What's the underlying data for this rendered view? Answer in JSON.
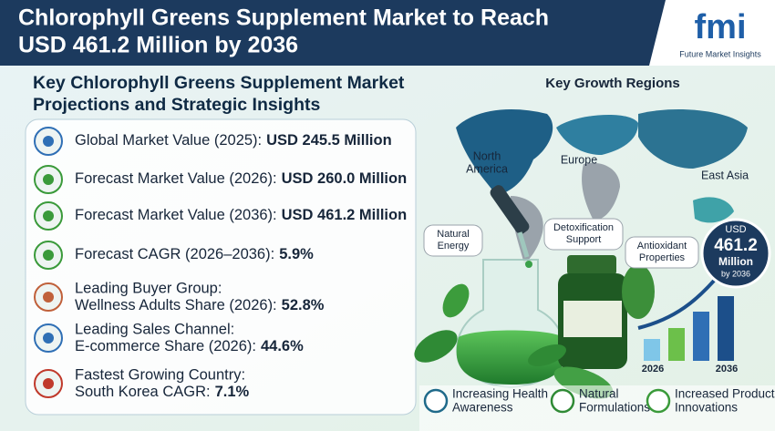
{
  "header": {
    "title_lines": [
      "Chlorophyll Greens Supplement Market to Reach",
      "USD 461.2 Million by 2036"
    ],
    "logo": {
      "mark": "fmi",
      "name": "Future Market Insights"
    }
  },
  "insights": {
    "title_lines": [
      "Key Chlorophyll Greens Supplement Market",
      "Projections and Strategic Insights"
    ],
    "items": [
      {
        "label": "Global Market Value (2025):",
        "value": "USD 245.5 Million"
      },
      {
        "label": "Forecast Market Value (2026):",
        "value": "USD 260.0 Million"
      },
      {
        "label": "Forecast Market Value (2036):",
        "value": "USD 461.2 Million"
      },
      {
        "label": "Forecast CAGR (2026–2036):",
        "value": "5.9%"
      },
      {
        "heading": "Leading Buyer Group:",
        "label": "Wellness Adults Share (2026):",
        "value": "52.8%"
      },
      {
        "heading": "Leading Sales Channel:",
        "label": "E-commerce Share (2026):",
        "value": "44.6%"
      },
      {
        "heading": "Fastest Growing Country:",
        "label": "South Korea CAGR:",
        "value": "7.1%"
      }
    ]
  },
  "regions": {
    "title": "Key Growth Regions",
    "labels": [
      {
        "lines": [
          "North",
          "America"
        ]
      },
      {
        "lines": [
          "Europe"
        ]
      },
      {
        "lines": [
          "East Asia"
        ]
      }
    ]
  },
  "callouts": [
    {
      "lines": [
        "Natural",
        "Energy"
      ]
    },
    {
      "lines": [
        "Detoxification",
        "Support"
      ]
    },
    {
      "lines": [
        "Antioxidant",
        "Properties"
      ]
    }
  ],
  "badge": {
    "lines": [
      "USD",
      "461.2",
      "Million",
      "by 2036"
    ]
  },
  "growth": {
    "labels": [
      "2026",
      "2036"
    ]
  },
  "drivers": [
    {
      "lines": [
        "Increasing Health",
        "Awareness"
      ]
    },
    {
      "lines": [
        "Natural",
        "Formulations"
      ]
    },
    {
      "lines": [
        "Increased Product",
        "Innovations"
      ]
    }
  ]
}
